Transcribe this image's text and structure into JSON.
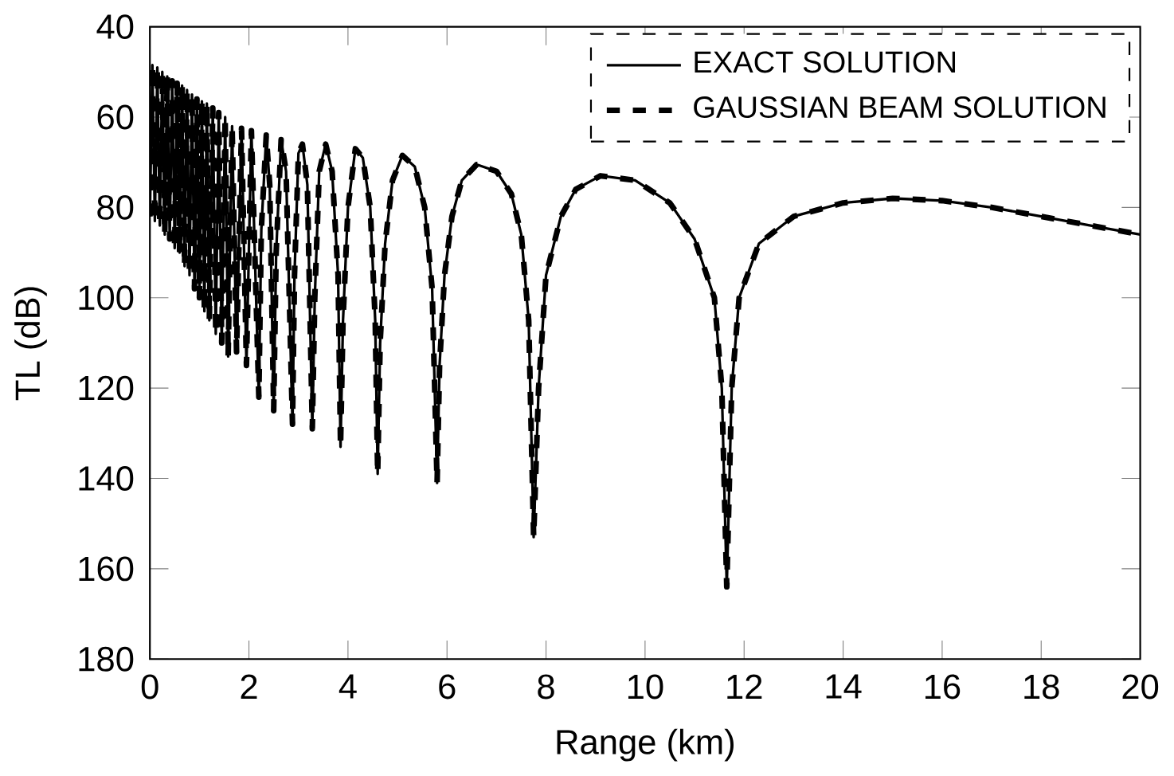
{
  "chart_data": {
    "type": "line",
    "xlabel": "Range (km)",
    "ylabel": "TL (dB)",
    "xlim": [
      0,
      20
    ],
    "ylim": [
      180,
      40
    ],
    "xticks": [
      0,
      2,
      4,
      6,
      8,
      10,
      12,
      14,
      16,
      18,
      20
    ],
    "yticks": [
      40,
      60,
      80,
      100,
      120,
      140,
      160,
      180
    ],
    "legend": "top right",
    "grid": false,
    "marker": "none",
    "series": [
      {
        "name": "EXACT SOLUTION",
        "color": "#000000",
        "line_style": "solid",
        "x": [
          0,
          0.05,
          0.1,
          0.15,
          0.2,
          0.25,
          0.3,
          0.35,
          0.4,
          0.45,
          0.5,
          0.55,
          0.6,
          0.65,
          0.7,
          0.75,
          0.8,
          0.85,
          0.9,
          0.95,
          1.0,
          1.05,
          1.1,
          1.15,
          1.2,
          1.27,
          1.33,
          1.39,
          1.45,
          1.52,
          1.58,
          1.66,
          1.75,
          1.85,
          1.95,
          2.05,
          2.2,
          2.25,
          2.35,
          2.42,
          2.5,
          2.55,
          2.65,
          2.75,
          2.88,
          2.92,
          3.0,
          3.08,
          3.18,
          3.28,
          3.33,
          3.42,
          3.55,
          3.68,
          3.8,
          3.85,
          3.9,
          4.0,
          4.15,
          4.3,
          4.45,
          4.55,
          4.6,
          4.65,
          4.75,
          4.9,
          5.1,
          5.35,
          5.55,
          5.7,
          5.8,
          5.85,
          5.95,
          6.1,
          6.3,
          6.6,
          7.0,
          7.3,
          7.5,
          7.65,
          7.75,
          7.85,
          8.0,
          8.3,
          8.6,
          9.1,
          9.8,
          10.5,
          11.0,
          11.4,
          11.55,
          11.65,
          11.75,
          11.9,
          12.3,
          13,
          14,
          15,
          16,
          17,
          18,
          19,
          20
        ],
        "values": [
          82,
          48.5,
          83,
          49,
          84,
          50,
          86,
          51,
          87,
          52,
          89,
          52.5,
          90,
          53,
          93,
          54,
          95,
          55,
          98,
          56,
          100,
          56.5,
          103,
          57,
          105,
          58,
          108,
          59,
          110,
          60,
          113,
          62,
          112,
          62.5,
          115,
          63,
          122,
          85,
          64,
          75,
          125,
          90,
          65,
          72,
          128,
          95,
          68,
          66,
          75,
          129,
          100,
          72,
          66,
          72,
          95,
          133,
          105,
          80,
          67,
          69,
          80,
          105,
          139,
          110,
          88,
          74,
          68.5,
          71,
          80,
          98,
          141,
          115,
          95,
          82,
          74,
          70.5,
          72,
          77,
          86,
          105,
          153,
          120,
          95,
          82,
          76,
          73,
          74,
          79,
          87,
          100,
          120,
          164,
          120,
          100,
          88,
          82,
          79,
          78,
          78.5,
          80,
          82,
          84,
          86
        ]
      },
      {
        "name": "GAUSSIAN BEAM SOLUTION",
        "color": "#000000",
        "line_style": "dashed",
        "x": [
          0,
          0.05,
          0.1,
          0.15,
          0.2,
          0.25,
          0.3,
          0.35,
          0.4,
          0.45,
          0.5,
          0.55,
          0.6,
          0.65,
          0.7,
          0.75,
          0.8,
          0.85,
          0.9,
          0.95,
          1.0,
          1.05,
          1.1,
          1.15,
          1.2,
          1.27,
          1.33,
          1.39,
          1.45,
          1.52,
          1.58,
          1.66,
          1.75,
          1.85,
          1.95,
          2.05,
          2.2,
          2.25,
          2.35,
          2.42,
          2.5,
          2.55,
          2.65,
          2.75,
          2.88,
          2.92,
          3.0,
          3.08,
          3.18,
          3.28,
          3.33,
          3.42,
          3.55,
          3.68,
          3.8,
          3.85,
          3.9,
          4.0,
          4.15,
          4.3,
          4.45,
          4.55,
          4.6,
          4.65,
          4.75,
          4.9,
          5.1,
          5.35,
          5.55,
          5.7,
          5.8,
          5.85,
          5.95,
          6.1,
          6.3,
          6.6,
          7.0,
          7.3,
          7.5,
          7.65,
          7.75,
          7.85,
          8.0,
          8.3,
          8.6,
          9.1,
          9.8,
          10.5,
          11.0,
          11.4,
          11.55,
          11.65,
          11.75,
          11.9,
          12.3,
          13,
          14,
          15,
          16,
          17,
          18,
          19,
          20
        ],
        "values": [
          82,
          48.5,
          83,
          49,
          84,
          50,
          86,
          51,
          87,
          52,
          89,
          52.5,
          90,
          53,
          93,
          54,
          95,
          55,
          98,
          56,
          100,
          56.5,
          103,
          57,
          105,
          58,
          108,
          59,
          110,
          60,
          113,
          62,
          112,
          62.5,
          115,
          63,
          122,
          85,
          64,
          75,
          125,
          90,
          65,
          72,
          128,
          95,
          68,
          66,
          75,
          129,
          100,
          72,
          66,
          72,
          95,
          133,
          105,
          80,
          67,
          69,
          80,
          105,
          139,
          110,
          88,
          74,
          68.5,
          71,
          80,
          98,
          141,
          115,
          95,
          82,
          74,
          70.5,
          72,
          77,
          86,
          105,
          153,
          120,
          95,
          82,
          76,
          73,
          74,
          79,
          87,
          100,
          120,
          164,
          120,
          100,
          88,
          82,
          79,
          78,
          78.5,
          80,
          82,
          84,
          86
        ]
      }
    ]
  }
}
